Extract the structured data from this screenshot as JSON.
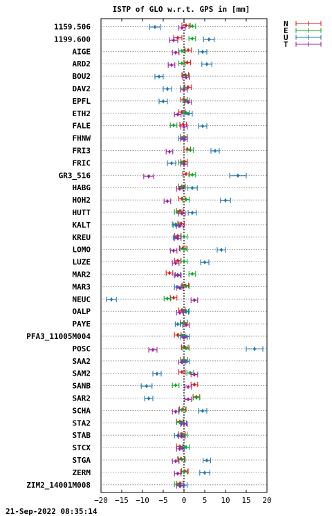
{
  "chart_data": {
    "type": "scatter",
    "title": "ISTP of GLO w.r.t. GPS in [mm]",
    "xlim": [
      -20,
      20
    ],
    "x_ticks": [
      -20,
      -15,
      -10,
      -5,
      0,
      5,
      10,
      15,
      20
    ],
    "x_tick_labels": [
      "−20",
      "−15",
      "−10",
      "−5",
      "0",
      "5",
      "10",
      "15",
      "20"
    ],
    "grid": "horizontal dotted",
    "zero_line": "vertical dotted",
    "legend_placement": "top-right outside",
    "stations": [
      "1159.506",
      "1199.600",
      "AIGE",
      "ARD2",
      "BOU2",
      "DAV2",
      "EPFL",
      "ETH2",
      "FALE",
      "FHNW",
      "FRI3",
      "FRIC",
      "GR3_516",
      "HABG",
      "HOH2",
      "HUTT",
      "KALT",
      "KREU",
      "LOMO",
      "LUZE",
      "MAR2",
      "MAR3",
      "NEUC",
      "OALP",
      "PAYE",
      "PFA3_11005M004",
      "POSC",
      "SAA2",
      "SAM2",
      "SANB",
      "SAR2",
      "SCHA",
      "STA2",
      "STAB",
      "STCX",
      "STGA",
      "ZERM",
      "ZIM2_14001M008"
    ],
    "series": [
      {
        "name": "N",
        "color": "#e41a1c",
        "values": [
          0.5,
          -1.5,
          1.0,
          0.8,
          0.3,
          1.0,
          0.0,
          -0.5,
          -0.2,
          0.0,
          0.8,
          0.0,
          0.5,
          -0.5,
          -0.5,
          -1.0,
          -0.7,
          -1.5,
          -0.3,
          -1.5,
          -3.5,
          0.3,
          -2.5,
          -0.5,
          0.0,
          -1.5,
          0.2,
          0.0,
          -0.5,
          2.5,
          3.0,
          -0.3,
          -1.0,
          -0.5,
          -1.0,
          -0.7,
          0.2,
          -1.0
        ],
        "errors": [
          1.0,
          1.0,
          0.8,
          0.8,
          0.8,
          0.8,
          0.8,
          0.8,
          0.8,
          0.8,
          0.8,
          0.8,
          0.8,
          0.8,
          0.8,
          0.8,
          0.8,
          0.8,
          0.8,
          0.8,
          0.8,
          0.8,
          0.8,
          0.8,
          0.8,
          0.8,
          0.8,
          0.8,
          0.8,
          0.8,
          0.8,
          0.8,
          0.8,
          0.8,
          0.8,
          0.8,
          0.8,
          0.8
        ]
      },
      {
        "name": "E",
        "color": "#10a82a",
        "values": [
          2.0,
          2.0,
          -0.5,
          -0.5,
          0.5,
          0.0,
          0.5,
          0.5,
          -2.5,
          0.0,
          1.5,
          -0.5,
          2.0,
          -0.5,
          0.5,
          -1.5,
          -2.0,
          0.0,
          0.0,
          0.0,
          2.0,
          0.5,
          -4.0,
          0.5,
          0.0,
          -0.5,
          0.5,
          0.0,
          1.5,
          -2.0,
          3.0,
          -0.5,
          -1.0,
          0.0,
          0.5,
          -0.5,
          0.0,
          -1.5
        ],
        "errors": [
          0.8,
          0.8,
          0.8,
          0.8,
          0.8,
          0.8,
          0.8,
          0.8,
          0.8,
          0.8,
          0.8,
          0.8,
          0.8,
          0.8,
          0.8,
          0.8,
          0.8,
          0.8,
          0.8,
          0.8,
          0.8,
          0.8,
          0.8,
          0.8,
          0.8,
          0.8,
          0.8,
          0.8,
          0.8,
          0.8,
          0.8,
          0.8,
          0.8,
          0.8,
          0.8,
          0.8,
          0.8,
          0.8
        ]
      },
      {
        "name": "U",
        "color": "#1f78b4",
        "values": [
          -7.0,
          6.0,
          4.5,
          5.5,
          -6.0,
          -4.0,
          -5.0,
          1.0,
          4.5,
          -0.5,
          7.5,
          -3.0,
          13.0,
          2.0,
          10.0,
          2.0,
          -2.0,
          -2.0,
          9.0,
          5.0,
          -1.5,
          -1.5,
          -17.5,
          0.5,
          -1.5,
          0.5,
          17.0,
          0.5,
          -6.5,
          -9.0,
          -8.5,
          4.5,
          0.0,
          -1.5,
          -0.5,
          5.5,
          5.0,
          0.0
        ],
        "errors": [
          1.3,
          1.3,
          1.0,
          1.2,
          1.0,
          1.0,
          1.0,
          1.0,
          1.0,
          0.8,
          1.0,
          1.0,
          2.0,
          1.2,
          1.2,
          1.0,
          0.6,
          0.6,
          1.0,
          1.0,
          0.6,
          0.8,
          1.2,
          0.6,
          0.6,
          0.8,
          2.0,
          0.8,
          1.0,
          1.3,
          1.0,
          1.0,
          0.6,
          0.8,
          0.6,
          0.9,
          1.2,
          0.8
        ]
      },
      {
        "name": "T",
        "color": "#a020a0",
        "values": [
          -0.5,
          -2.5,
          -2.0,
          -3.0,
          0.5,
          0.0,
          1.0,
          -1.5,
          0.0,
          0.0,
          -3.5,
          0.0,
          -8.5,
          -1.0,
          -4.0,
          -0.5,
          -1.0,
          -1.5,
          -2.5,
          -2.0,
          -1.5,
          -1.0,
          2.5,
          -1.0,
          0.5,
          0.0,
          -7.5,
          -0.5,
          2.5,
          1.0,
          1.0,
          -2.0,
          0.0,
          -0.5,
          -1.0,
          -2.0,
          -1.5,
          -1.0
        ],
        "errors": [
          0.8,
          1.0,
          0.8,
          0.8,
          0.8,
          0.8,
          0.8,
          0.8,
          0.8,
          0.8,
          0.8,
          0.8,
          1.2,
          0.8,
          0.8,
          0.8,
          0.8,
          0.8,
          0.8,
          0.8,
          0.8,
          0.8,
          0.8,
          0.8,
          0.8,
          0.8,
          1.0,
          0.8,
          0.8,
          0.8,
          0.8,
          0.8,
          0.8,
          0.8,
          0.8,
          0.8,
          0.8,
          0.8
        ]
      }
    ],
    "footer": "21-Sep-2022 08:35:14"
  }
}
